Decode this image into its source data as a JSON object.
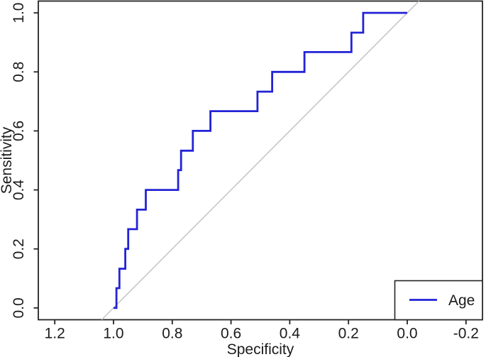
{
  "chart_data": {
    "type": "line",
    "subtype": "roc-step-curve",
    "title": "",
    "xlabel": "Specificity",
    "ylabel": "Sensitivity",
    "x_axis_reversed": true,
    "xlim": [
      1.2,
      -0.2
    ],
    "ylim": [
      0,
      1
    ],
    "grid": false,
    "x_tick_labels": [
      "1.2",
      "1.0",
      "0.8",
      "0.6",
      "0.4",
      "0.2",
      "0.0",
      "-0.2"
    ],
    "x_tick_values": [
      1.2,
      1.0,
      0.8,
      0.6,
      0.4,
      0.2,
      0.0,
      -0.2
    ],
    "y_tick_labels": [
      "0.0",
      "0.2",
      "0.4",
      "0.6",
      "0.8",
      "1.0"
    ],
    "y_tick_values": [
      0.0,
      0.2,
      0.4,
      0.6,
      0.8,
      1.0
    ],
    "series": [
      {
        "name": "Age",
        "color": "#2323d6",
        "step_style": "horizontal-then-vertical",
        "points": [
          [
            1.0,
            0.0
          ],
          [
            0.99,
            0.067
          ],
          [
            0.98,
            0.133
          ],
          [
            0.96,
            0.2
          ],
          [
            0.95,
            0.267
          ],
          [
            0.92,
            0.333
          ],
          [
            0.89,
            0.4
          ],
          [
            0.78,
            0.467
          ],
          [
            0.77,
            0.533
          ],
          [
            0.73,
            0.6
          ],
          [
            0.67,
            0.667
          ],
          [
            0.51,
            0.733
          ],
          [
            0.46,
            0.8
          ],
          [
            0.35,
            0.867
          ],
          [
            0.19,
            0.933
          ],
          [
            0.15,
            1.0
          ],
          [
            0.0,
            1.0
          ]
        ]
      }
    ],
    "reference_line": {
      "name": "chance-diagonal",
      "from": [
        1.0,
        0.0
      ],
      "to": [
        0.0,
        1.0
      ],
      "color": "#c4c4c4"
    },
    "legend": {
      "position": "bottom-right",
      "entries": [
        {
          "label": "Age",
          "color": "#2323d6"
        }
      ]
    },
    "axis_color": "#242424",
    "text_color": "#1b1b1b"
  }
}
